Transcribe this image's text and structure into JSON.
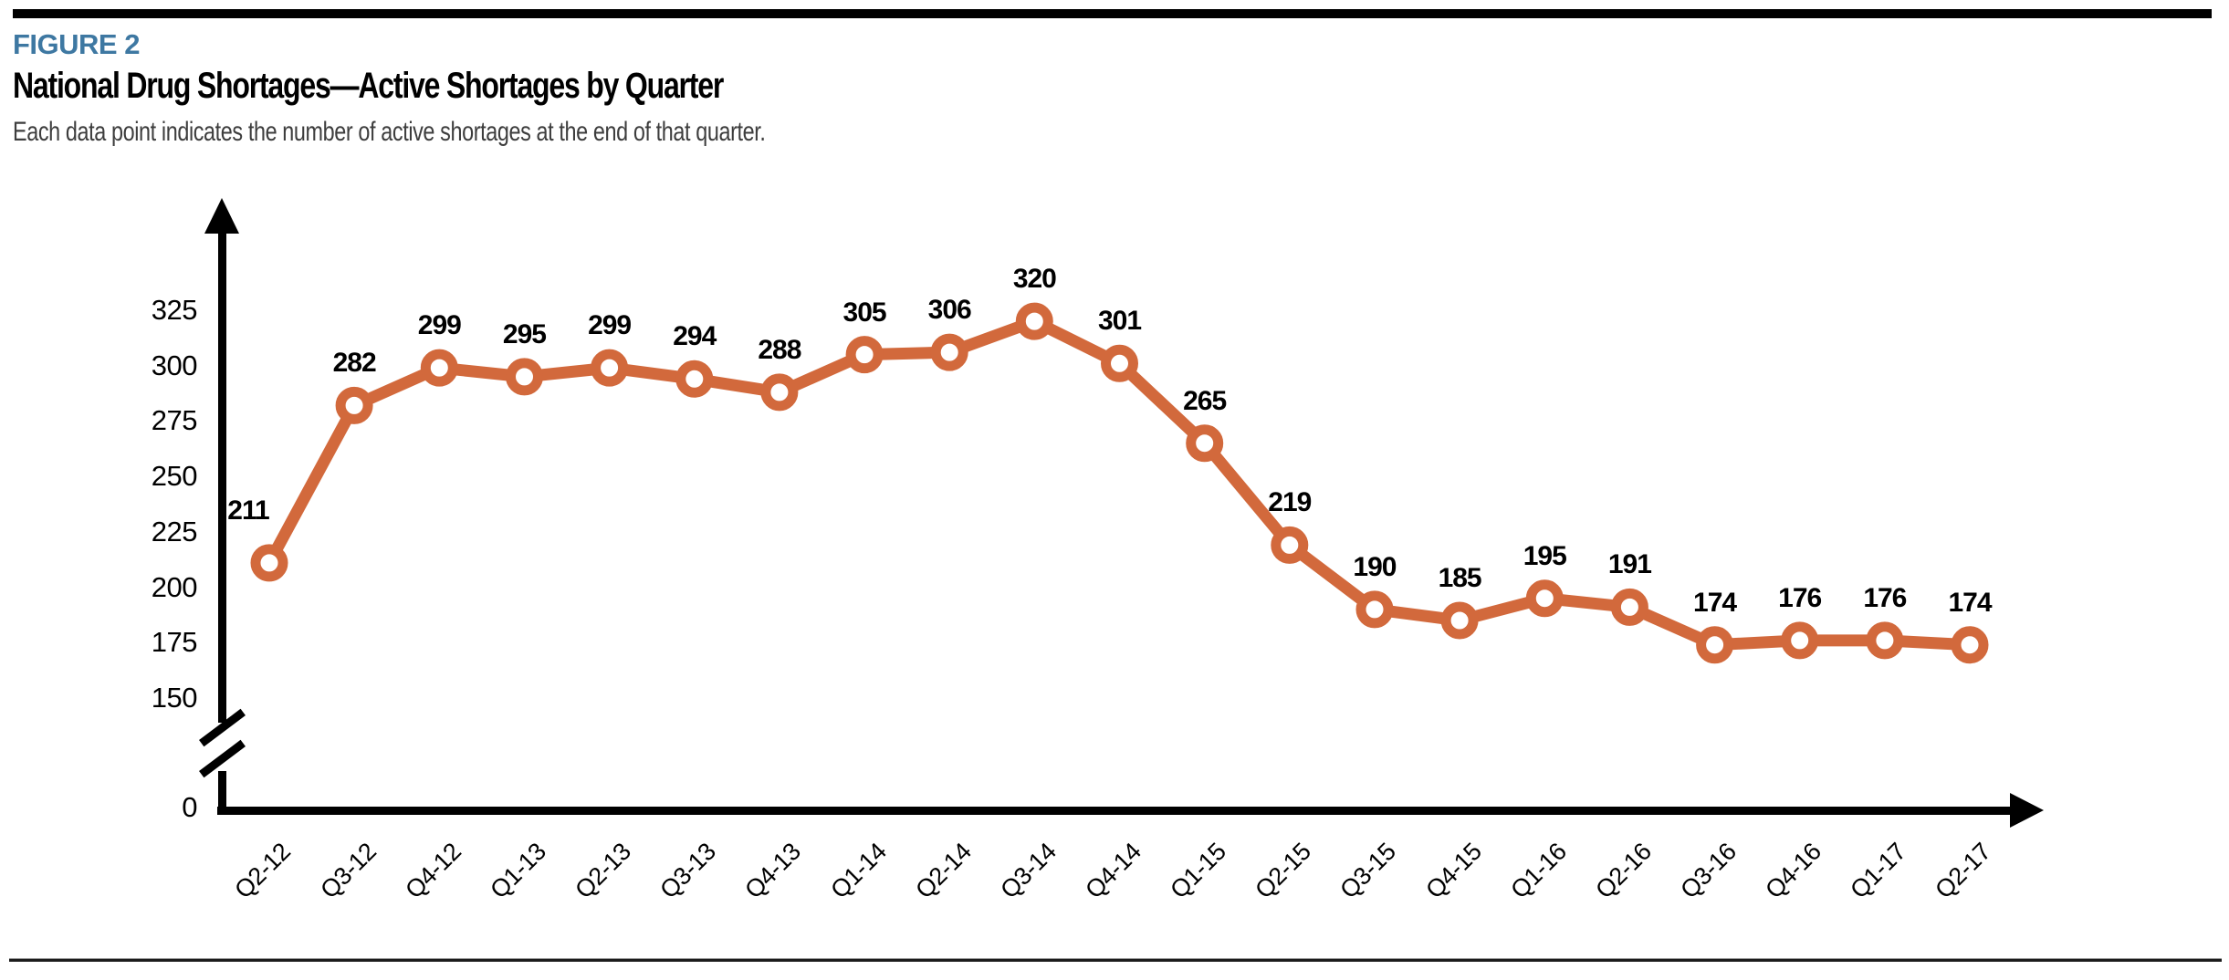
{
  "figure": {
    "kicker": "FIGURE 2",
    "title": "National Drug Shortages—Active Shortages by Quarter",
    "subtitle": "Each data point indicates the number of active shortages at the end of that quarter."
  },
  "colors": {
    "accent_orange": "#d2693c",
    "kicker_blue": "#3e78a2",
    "axis_black": "#000000",
    "subtitle_gray": "#3d3d3d"
  },
  "chart_data": {
    "type": "line",
    "title": "National Drug Shortages—Active Shortages by Quarter",
    "subtitle": "Each data point indicates the number of active shortages at the end of that quarter.",
    "series_name": "Active shortages",
    "categories": [
      "Q2-12",
      "Q3-12",
      "Q4-12",
      "Q1-13",
      "Q2-13",
      "Q3-13",
      "Q4-13",
      "Q1-14",
      "Q2-14",
      "Q3-14",
      "Q4-14",
      "Q1-15",
      "Q2-15",
      "Q3-15",
      "Q4-15",
      "Q1-16",
      "Q2-16",
      "Q3-16",
      "Q4-16",
      "Q1-17",
      "Q2-17"
    ],
    "values": [
      211,
      282,
      299,
      295,
      299,
      294,
      288,
      305,
      306,
      320,
      301,
      265,
      219,
      190,
      185,
      195,
      191,
      174,
      176,
      176,
      174
    ],
    "xlabel": "",
    "ylabel": "",
    "yticks": [
      325,
      300,
      275,
      250,
      225,
      200,
      175,
      150,
      0
    ],
    "ylim": [
      0,
      340
    ],
    "axis_break_between": [
      0,
      150
    ],
    "grid": false,
    "legend_position": "none",
    "point_labels_shown": true,
    "marker_style": "open-circle",
    "line_color": "#d2693c"
  }
}
